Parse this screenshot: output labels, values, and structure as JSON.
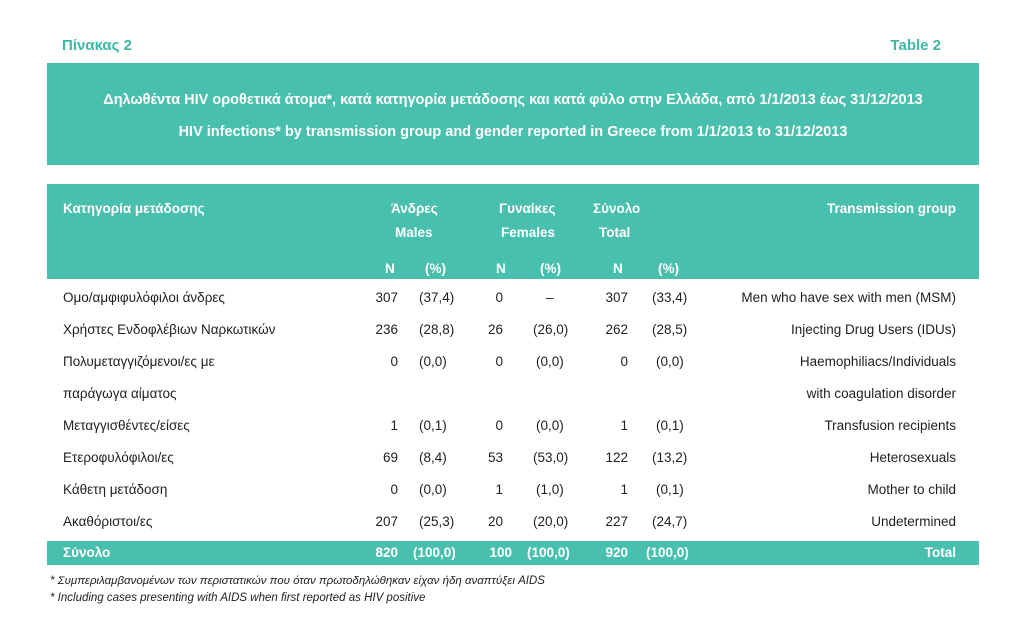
{
  "header": {
    "label_left": "Πίνακας 2",
    "label_right": "Table 2"
  },
  "title": {
    "greek": "Δηλωθέντα HIV οροθετικά άτομα*, κατά κατηγορία μετάδοσης και κατά φύλο στην Ελλάδα, από 1/1/2013 έως 31/12/2013",
    "english": "HIV infections* by transmission group and gender reported in Greece from 1/1/2013 to 31/12/2013"
  },
  "table": {
    "col_category_gr": "Κατηγορία μετάδοσης",
    "col_males_gr": "Άνδρες",
    "col_males_en": "Males",
    "col_females_gr": "Γυναίκες",
    "col_females_en": "Females",
    "col_total_gr": "Σύνολο",
    "col_total_en": "Total",
    "col_category_en": "Transmission group",
    "n_label": "N",
    "pct_label": "(%)",
    "rows": [
      {
        "gr": "Ομο/αμφιφυλόφιλοι άνδρες",
        "m_n": "307",
        "m_p": "(37,4)",
        "f_n": "0",
        "f_p": "–",
        "t_n": "307",
        "t_p": "(33,4)",
        "en": "Men who have sex with men (MSM)"
      },
      {
        "gr": "Χρήστες Ενδοφλέβιων Ναρκωτικών",
        "m_n": "236",
        "m_p": "(28,8)",
        "f_n": "26",
        "f_p": "(26,0)",
        "t_n": "262",
        "t_p": "(28,5)",
        "en": "Injecting Drug Users (IDUs)"
      },
      {
        "gr": "Πολυμεταγγιζόμενοι/ες με",
        "m_n": "0",
        "m_p": "(0,0)",
        "f_n": "0",
        "f_p": "(0,0)",
        "t_n": "0",
        "t_p": "(0,0)",
        "en": "Haemophiliacs/Individuals"
      },
      {
        "gr": "παράγωγα αίματος",
        "m_n": "",
        "m_p": "",
        "f_n": "",
        "f_p": "",
        "t_n": "",
        "t_p": "",
        "en": "with coagulation disorder"
      },
      {
        "gr": "Μεταγγισθέντες/είσες",
        "m_n": "1",
        "m_p": "(0,1)",
        "f_n": "0",
        "f_p": "(0,0)",
        "t_n": "1",
        "t_p": "(0,1)",
        "en": "Transfusion recipients"
      },
      {
        "gr": "Ετεροφυλόφιλοι/ες",
        "m_n": "69",
        "m_p": "(8,4)",
        "f_n": "53",
        "f_p": "(53,0)",
        "t_n": "122",
        "t_p": "(13,2)",
        "en": "Heterosexuals"
      },
      {
        "gr": "Κάθετη μετάδοση",
        "m_n": "0",
        "m_p": "(0,0)",
        "f_n": "1",
        "f_p": "(1,0)",
        "t_n": "1",
        "t_p": "(0,1)",
        "en": "Mother to child"
      },
      {
        "gr": "Ακαθόριστοι/ες",
        "m_n": "207",
        "m_p": "(25,3)",
        "f_n": "20",
        "f_p": "(20,0)",
        "t_n": "227",
        "t_p": "(24,7)",
        "en": "Undetermined"
      }
    ],
    "total": {
      "gr": "Σύνολο",
      "m_n": "820",
      "m_p": "(100,0)",
      "f_n": "100",
      "f_p": "(100,0)",
      "t_n": "920",
      "t_p": "(100,0)",
      "en": "Total"
    }
  },
  "footnotes": {
    "greek": "* Συμπεριλαμβανομένων των περιστατικών που όταν πρωτοδηλώθηκαν είχαν ήδη αναπτύξει AIDS",
    "english": "* Including cases presenting with AIDS when first reported as HIV positive"
  }
}
